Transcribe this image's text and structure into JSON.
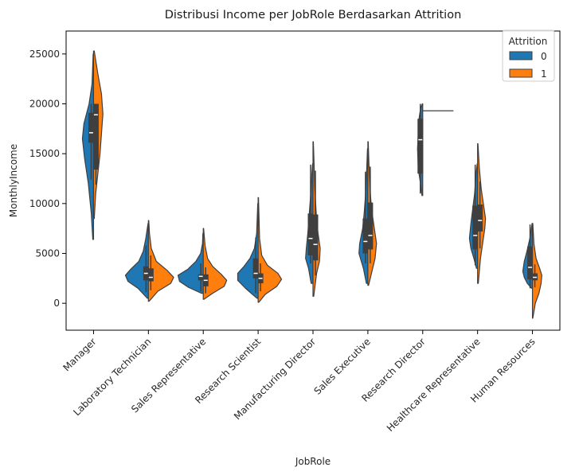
{
  "chart_data": {
    "type": "violin",
    "title": "Distribusi Income per JobRole Berdasarkan Attrition",
    "xlabel": "JobRole",
    "ylabel": "MonthlyIncome",
    "ylim": [
      -2700,
      27300
    ],
    "yticks": [
      0,
      5000,
      10000,
      15000,
      20000,
      25000
    ],
    "split": true,
    "grid": false,
    "legend": {
      "title": "Attrition",
      "position": "top-right",
      "entries": [
        {
          "label": "0",
          "color": "#1f77b4"
        },
        {
          "label": "1",
          "color": "#ff7f0e"
        }
      ]
    },
    "categories": [
      "Manager",
      "Laboratory Technician",
      "Sales Representative",
      "Research Scientist",
      "Manufacturing Director",
      "Sales Executive",
      "Research Director",
      "Healthcare Representative",
      "Human Resources"
    ],
    "series": [
      {
        "name": "0",
        "color": "#1f77b4",
        "violins": [
          {
            "profile": [
              [
                6400,
                0.02
              ],
              [
                9000,
                0.06
              ],
              [
                12000,
                0.14
              ],
              [
                14500,
                0.24
              ],
              [
                16500,
                0.3
              ],
              [
                18000,
                0.26
              ],
              [
                20000,
                0.12
              ],
              [
                22000,
                0.04
              ],
              [
                25000,
                0.01
              ]
            ],
            "q1": 16100,
            "median": 17100,
            "q3": 19100,
            "whisker": [
              12400,
              19999
            ]
          },
          {
            "profile": [
              [
                500,
                0.03
              ],
              [
                1500,
                0.28
              ],
              [
                2200,
                0.55
              ],
              [
                2800,
                0.62
              ],
              [
                3400,
                0.48
              ],
              [
                4200,
                0.26
              ],
              [
                5200,
                0.14
              ],
              [
                6500,
                0.07
              ],
              [
                8000,
                0.01
              ]
            ],
            "q1": 2300,
            "median": 3000,
            "q3": 3700,
            "whisker": [
              1100,
              5800
            ]
          },
          {
            "profile": [
              [
                1000,
                0.05
              ],
              [
                1600,
                0.4
              ],
              [
                2200,
                0.64
              ],
              [
                2800,
                0.68
              ],
              [
                3400,
                0.42
              ],
              [
                4200,
                0.2
              ],
              [
                5000,
                0.07
              ],
              [
                6000,
                0.02
              ],
              [
                7000,
                0.01
              ]
            ],
            "q1": 2300,
            "median": 2700,
            "q3": 2900,
            "whisker": [
              1200,
              4000
            ]
          },
          {
            "profile": [
              [
                500,
                0.03
              ],
              [
                1500,
                0.34
              ],
              [
                2300,
                0.55
              ],
              [
                3000,
                0.55
              ],
              [
                3700,
                0.38
              ],
              [
                4500,
                0.22
              ],
              [
                5500,
                0.1
              ],
              [
                7000,
                0.04
              ],
              [
                10000,
                0.01
              ]
            ],
            "q1": 2500,
            "median": 3000,
            "q3": 4500,
            "whisker": [
              1000,
              6600
            ]
          },
          {
            "profile": [
              [
                2000,
                0.05
              ],
              [
                3500,
                0.12
              ],
              [
                4500,
                0.2
              ],
              [
                5500,
                0.18
              ],
              [
                7000,
                0.14
              ],
              [
                9000,
                0.1
              ],
              [
                11000,
                0.06
              ],
              [
                13000,
                0.03
              ],
              [
                14000,
                0.01
              ]
            ],
            "q1": 4800,
            "median": 6500,
            "q3": 9000,
            "whisker": [
              4000,
              13900
            ]
          },
          {
            "profile": [
              [
                2000,
                0.04
              ],
              [
                3500,
                0.12
              ],
              [
                5000,
                0.24
              ],
              [
                6000,
                0.22
              ],
              [
                7500,
                0.14
              ],
              [
                9000,
                0.1
              ],
              [
                11000,
                0.06
              ],
              [
                13500,
                0.03
              ],
              [
                15500,
                0.01
              ]
            ],
            "q1": 5000,
            "median": 6200,
            "q3": 8500,
            "whisker": [
              4000,
              13200
            ]
          },
          {
            "profile": [
              [
                10800,
                0.02
              ],
              [
                12000,
                0.06
              ],
              [
                13500,
                0.12
              ],
              [
                15500,
                0.14
              ],
              [
                17000,
                0.12
              ],
              [
                18500,
                0.1
              ],
              [
                19500,
                0.06
              ],
              [
                20000,
                0.01
              ]
            ],
            "q1": 13000,
            "median": 16400,
            "q3": 18500,
            "whisker": [
              11000,
              19999
            ]
          },
          {
            "profile": [
              [
                3500,
                0.03
              ],
              [
                4500,
                0.1
              ],
              [
                5500,
                0.18
              ],
              [
                6500,
                0.22
              ],
              [
                8000,
                0.18
              ],
              [
                9500,
                0.13
              ],
              [
                11000,
                0.08
              ],
              [
                13000,
                0.04
              ],
              [
                14000,
                0.01
              ]
            ],
            "q1": 5400,
            "median": 6800,
            "q3": 9800,
            "whisker": [
              3800,
              13900
            ]
          },
          {
            "profile": [
              [
                1500,
                0.02
              ],
              [
                2000,
                0.14
              ],
              [
                2600,
                0.22
              ],
              [
                3200,
                0.26
              ],
              [
                4200,
                0.22
              ],
              [
                5200,
                0.15
              ],
              [
                6500,
                0.07
              ],
              [
                8000,
                0.01
              ]
            ],
            "q1": 2400,
            "median": 3600,
            "q3": 5700,
            "whisker": [
              1500,
              7900
            ]
          }
        ]
      },
      {
        "name": "1",
        "color": "#ff7f0e",
        "violins": [
          {
            "profile": [
              [
                8500,
                0.02
              ],
              [
                11000,
                0.06
              ],
              [
                13000,
                0.12
              ],
              [
                15000,
                0.18
              ],
              [
                17000,
                0.22
              ],
              [
                19000,
                0.26
              ],
              [
                21000,
                0.22
              ],
              [
                23000,
                0.12
              ],
              [
                25300,
                0.02
              ]
            ],
            "q1": 13400,
            "median": 18900,
            "q3": 20000,
            "whisker": [
              11900,
              20000
            ]
          },
          {
            "profile": [
              [
                200,
                0.02
              ],
              [
                1200,
                0.26
              ],
              [
                2000,
                0.62
              ],
              [
                2600,
                0.7
              ],
              [
                3300,
                0.52
              ],
              [
                4200,
                0.22
              ],
              [
                5500,
                0.08
              ],
              [
                7000,
                0.03
              ],
              [
                8300,
                0.01
              ]
            ],
            "q1": 2200,
            "median": 2600,
            "q3": 3500,
            "whisker": [
              1300,
              4800
            ]
          },
          {
            "profile": [
              [
                400,
                0.02
              ],
              [
                1000,
                0.26
              ],
              [
                1700,
                0.58
              ],
              [
                2300,
                0.65
              ],
              [
                2900,
                0.5
              ],
              [
                3700,
                0.26
              ],
              [
                4500,
                0.12
              ],
              [
                5800,
                0.05
              ],
              [
                7500,
                0.01
              ]
            ],
            "q1": 1700,
            "median": 2300,
            "q3": 2900,
            "whisker": [
              1000,
              3600
            ]
          },
          {
            "profile": [
              [
                100,
                0.02
              ],
              [
                900,
                0.2
              ],
              [
                1700,
                0.52
              ],
              [
                2400,
                0.65
              ],
              [
                3000,
                0.55
              ],
              [
                3800,
                0.26
              ],
              [
                4800,
                0.1
              ],
              [
                6500,
                0.04
              ],
              [
                10600,
                0.01
              ]
            ],
            "q1": 2000,
            "median": 2500,
            "q3": 3000,
            "whisker": [
              1200,
              4000
            ]
          },
          {
            "profile": [
              [
                700,
                0.02
              ],
              [
                3000,
                0.1
              ],
              [
                4200,
                0.18
              ],
              [
                5500,
                0.2
              ],
              [
                7000,
                0.14
              ],
              [
                9000,
                0.09
              ],
              [
                11500,
                0.05
              ],
              [
                14000,
                0.03
              ],
              [
                16200,
                0.01
              ]
            ],
            "q1": 4300,
            "median": 5900,
            "q3": 8900,
            "whisker": [
              2800,
              13300
            ]
          },
          {
            "profile": [
              [
                1800,
                0.02
              ],
              [
                3000,
                0.1
              ],
              [
                4500,
                0.2
              ],
              [
                6000,
                0.24
              ],
              [
                7500,
                0.18
              ],
              [
                9500,
                0.1
              ],
              [
                11500,
                0.06
              ],
              [
                14000,
                0.03
              ],
              [
                16200,
                0.01
              ]
            ],
            "q1": 5400,
            "median": 6800,
            "q3": 10100,
            "whisker": [
              4000,
              13700
            ]
          },
          {
            "profile": [
              [
                19200,
                0.005
              ],
              [
                19280,
                0.01
              ],
              [
                19350,
                0.005
              ]
            ],
            "median": 19300,
            "line_only": true
          },
          {
            "profile": [
              [
                2000,
                0.02
              ],
              [
                4500,
                0.08
              ],
              [
                6500,
                0.16
              ],
              [
                7500,
                0.2
              ],
              [
                8500,
                0.22
              ],
              [
                10000,
                0.16
              ],
              [
                11500,
                0.1
              ],
              [
                13500,
                0.05
              ],
              [
                16000,
                0.01
              ]
            ],
            "q1": 7200,
            "median": 8300,
            "q3": 9900,
            "whisker": [
              5500,
              12200
            ]
          },
          {
            "profile": [
              [
                -1500,
                0.01
              ],
              [
                0,
                0.08
              ],
              [
                1000,
                0.18
              ],
              [
                2000,
                0.24
              ],
              [
                2800,
                0.26
              ],
              [
                3500,
                0.2
              ],
              [
                4500,
                0.1
              ],
              [
                6000,
                0.04
              ],
              [
                8000,
                0.01
              ]
            ],
            "q1": 2300,
            "median": 2600,
            "q3": 3000,
            "whisker": [
              1600,
              3900
            ]
          }
        ]
      }
    ]
  }
}
